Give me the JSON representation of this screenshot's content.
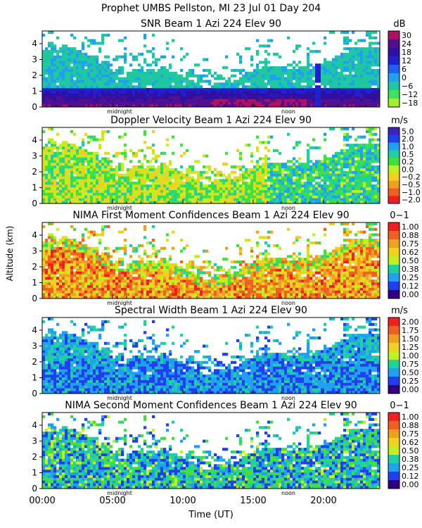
{
  "figure": {
    "title": "Prophet  UMBS Pellston, MI  23 Jul 01 Day 204",
    "ylabel": "Altitude (km)",
    "xlabel": "Time (UT)",
    "xticks": [
      "00:00",
      "05:00",
      "10:00",
      "15:00",
      "20:00"
    ],
    "marker_midnight": "midnight",
    "marker_noon": "noon"
  },
  "colors": {
    "snr": [
      "#a0f030",
      "#40e060",
      "#20c8a0",
      "#20a0f0",
      "#2060f0",
      "#2020d0",
      "#3010a0",
      "#501090",
      "#b01060",
      "#f03020",
      "#f07020",
      "#f0b020"
    ],
    "velocity": [
      "#f02020",
      "#f06020",
      "#f0a020",
      "#f0d020",
      "#c0f020",
      "#40e040",
      "#20d0a0",
      "#20a0f0",
      "#2040f0",
      "#4020c0",
      "#300080"
    ],
    "confidence": [
      "#300080",
      "#2040f0",
      "#20a0f0",
      "#20d0a0",
      "#40e040",
      "#c0f020",
      "#f0d020",
      "#f0a020",
      "#f06020",
      "#f02020"
    ],
    "background": "#ffffff",
    "noise_gap": "#ffffff"
  },
  "chart_data": [
    {
      "type": "heatmap",
      "id": "snr",
      "title": "SNR Beam 1 Azi 224 Elev 90",
      "unit": "dB",
      "x_range_hours": [
        0,
        24
      ],
      "ylim": [
        0,
        4.8
      ],
      "yticks": [
        0,
        1,
        2,
        3,
        4
      ],
      "colorbar_labels": [
        "30",
        "24",
        "18",
        "12",
        "6",
        "0",
        "−6",
        "−12",
        "−18"
      ]
    },
    {
      "type": "heatmap",
      "id": "velocity",
      "title": "Doppler Velocity Beam 1 Azi 224 Elev 90",
      "unit": "m/s",
      "x_range_hours": [
        0,
        24
      ],
      "ylim": [
        0,
        4.8
      ],
      "yticks": [
        0,
        1,
        2,
        3,
        4
      ],
      "colorbar_labels": [
        "5.0",
        "2.0",
        "1.0",
        "0.5",
        "0.2",
        "0.0",
        "−0.2",
        "−0.5",
        "−1.0",
        "−2.0"
      ]
    },
    {
      "type": "heatmap",
      "id": "conf1",
      "title": "NIMA First Moment Confidences Beam 1 Azi 224 Elev 90",
      "unit": "0−1",
      "x_range_hours": [
        0,
        24
      ],
      "ylim": [
        0,
        4.8
      ],
      "yticks": [
        0,
        1,
        2,
        3,
        4
      ],
      "colorbar_labels": [
        "1.00",
        "0.88",
        "0.75",
        "0.62",
        "0.50",
        "0.38",
        "0.25",
        "0.12",
        "0.00"
      ]
    },
    {
      "type": "heatmap",
      "id": "width",
      "title": "Spectral Width Beam 1 Azi 224 Elev 90",
      "unit": "m/s",
      "x_range_hours": [
        0,
        24
      ],
      "ylim": [
        0,
        4.8
      ],
      "yticks": [
        0,
        1,
        2,
        3,
        4
      ],
      "colorbar_labels": [
        "2.00",
        "1.75",
        "1.50",
        "1.25",
        "1.00",
        "0.75",
        "0.50",
        "0.25",
        "0.00"
      ]
    },
    {
      "type": "heatmap",
      "id": "conf2",
      "title": "NIMA Second Moment Confidences Beam 1 Azi 224 Elev 90",
      "unit": "0−1",
      "x_range_hours": [
        0,
        24
      ],
      "ylim": [
        0,
        4.8
      ],
      "yticks": [
        0,
        1,
        2,
        3,
        4
      ],
      "colorbar_labels": [
        "1.00",
        "0.88",
        "0.75",
        "0.62",
        "0.50",
        "0.38",
        "0.25",
        "0.12",
        "0.00"
      ]
    }
  ]
}
